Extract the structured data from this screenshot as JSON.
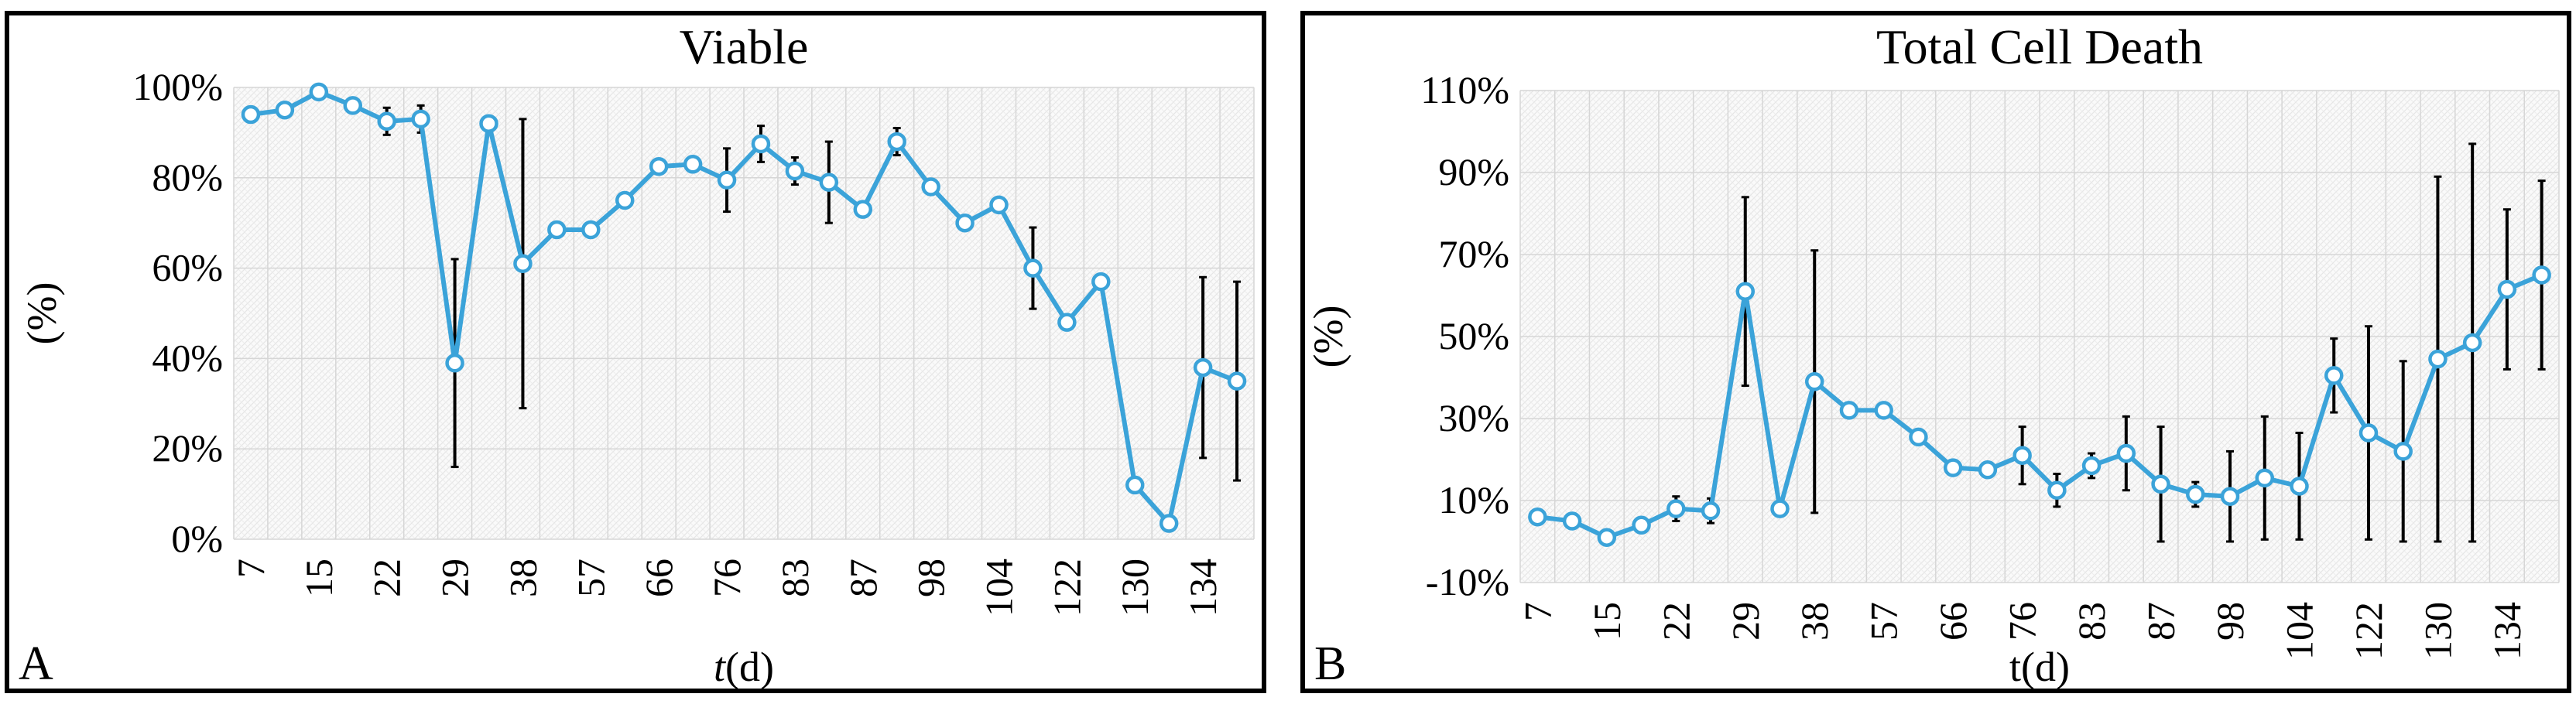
{
  "chart_data": [
    {
      "panel_label": "A",
      "type": "line",
      "title": "Viable",
      "xlabel_italic": "t",
      "xlabel_rest": "(d)",
      "ylabel": "(%)",
      "ylim": [
        0,
        100
      ],
      "yticks": [
        "0%",
        "20%",
        "40%",
        "60%",
        "80%",
        "100%"
      ],
      "ytick_values": [
        0,
        20,
        40,
        60,
        80,
        100
      ],
      "xtick_labels": [
        "7",
        "15",
        "22",
        "29",
        "38",
        "57",
        "66",
        "76",
        "83",
        "87",
        "98",
        "104",
        "122",
        "130",
        "134"
      ],
      "grid": true,
      "series": [
        {
          "color": "#3ba3d9",
          "values": [
            94,
            95,
            99,
            96,
            92.5,
            93,
            39,
            92,
            61,
            68.5,
            68.5,
            75,
            82.5,
            83,
            79.5,
            87.5,
            81.5,
            79,
            73,
            88,
            78,
            70,
            74,
            60,
            48,
            57,
            12,
            3.5,
            38,
            35
          ],
          "errors": [
            0,
            0,
            0,
            0,
            3,
            3,
            23,
            0,
            32,
            0,
            0,
            0,
            0,
            0,
            7,
            4,
            3,
            9,
            0,
            3,
            0,
            0,
            0,
            9,
            0,
            0,
            0,
            0,
            20,
            22
          ]
        }
      ]
    },
    {
      "panel_label": "B",
      "type": "line",
      "title": "Total Cell Death",
      "xlabel": "t(d)",
      "ylabel": "(%)",
      "ylim": [
        -10,
        110
      ],
      "yticks": [
        "-10%",
        "10%",
        "30%",
        "50%",
        "70%",
        "90%",
        "110%"
      ],
      "ytick_values": [
        -10,
        10,
        30,
        50,
        70,
        90,
        110
      ],
      "xtick_labels": [
        "7",
        "15",
        "22",
        "29",
        "38",
        "57",
        "66",
        "76",
        "83",
        "87",
        "98",
        "104",
        "122",
        "130",
        "134"
      ],
      "grid": true,
      "series": [
        {
          "color": "#3ba3d9",
          "values": [
            6,
            5,
            1,
            4,
            8,
            7.5,
            61,
            8,
            39,
            32,
            32,
            25.5,
            18,
            17.5,
            21,
            12.5,
            18.5,
            21.5,
            14,
            11.5,
            11,
            15.5,
            13.5,
            40.5,
            26.5,
            22,
            44.5,
            48.5,
            61.5,
            65
          ],
          "errors": [
            0,
            0,
            0,
            0,
            3,
            3,
            23,
            0,
            32,
            0,
            0,
            0,
            0,
            0,
            7,
            4,
            3,
            9,
            14,
            3,
            11,
            15,
            13,
            9,
            26,
            22,
            44.5,
            48.5,
            19.5,
            23
          ]
        }
      ]
    }
  ]
}
